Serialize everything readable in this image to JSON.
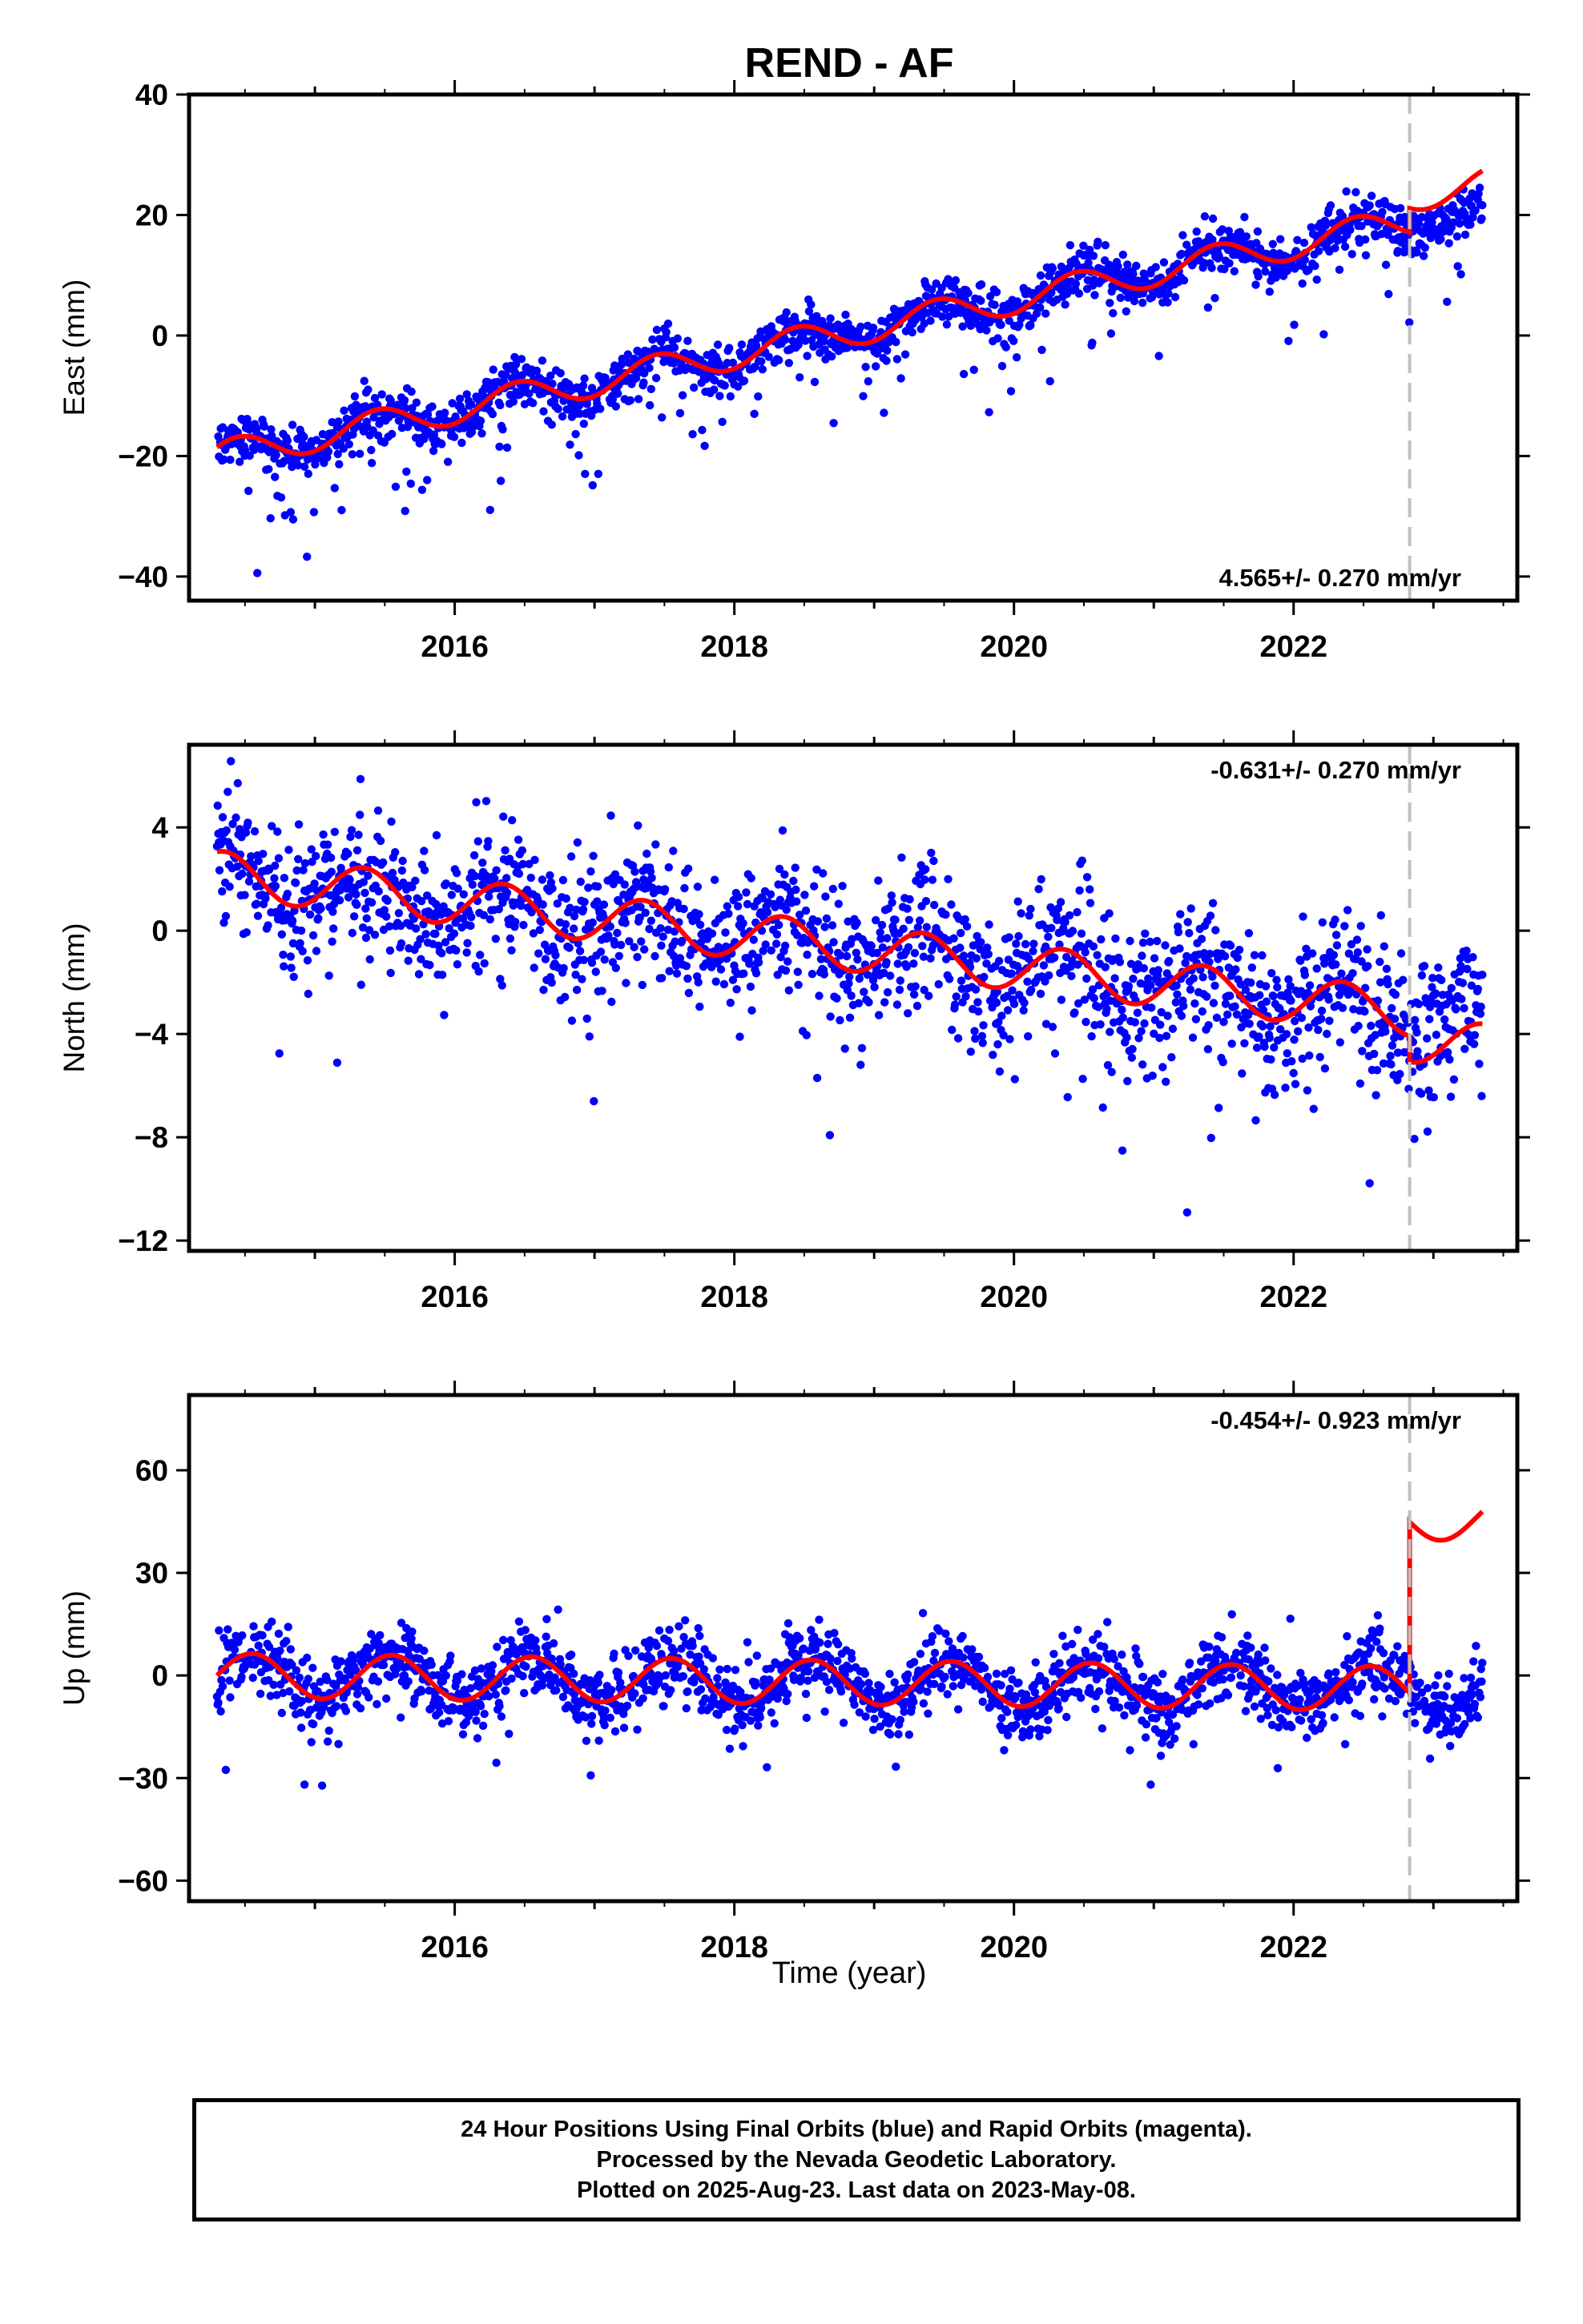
{
  "title": "REND - AF",
  "xlabel": "Time (year)",
  "colors": {
    "points": "#0000ff",
    "model": "#ff0000",
    "offset_line": "#c0c0c0",
    "axes": "#000000"
  },
  "footer": {
    "line1": "24 Hour Positions Using Final Orbits (blue) and Rapid Orbits (magenta).",
    "line2": "Processed by the Nevada Geodetic Laboratory.",
    "line3": "Plotted on 2025-Aug-23. Last data on 2023-May-08."
  },
  "chart_data": [
    {
      "type": "scatter",
      "ylabel": "East (mm)",
      "rate_label": "4.565+/- 0.270 mm/yr",
      "rate_position": "bottom-right",
      "xlim": [
        2014.1,
        2023.6
      ],
      "ylim": [
        -44,
        40
      ],
      "yticks": [
        -40,
        -20,
        0,
        20,
        40
      ],
      "ytick_labels": [
        "−40",
        "−20",
        "0",
        "20",
        "40"
      ],
      "xticks": [
        2016,
        2018,
        2020,
        2022
      ],
      "xtick_labels": [
        "2016",
        "2018",
        "2020",
        "2022"
      ],
      "offset_epoch": 2022.83,
      "data_range": [
        2014.3,
        2023.35
      ],
      "series": [
        {
          "role": "positions",
          "color": "blue",
          "trend": {
            "t0": 2014.3,
            "value_at_t0": -20.0,
            "rate_mm_per_yr": 4.565,
            "annual_amplitude": 2.5,
            "annual_peak_phase": 0.45,
            "noise_sd": 2.0,
            "outlier_fraction": 0.06,
            "outlier_bias": -10.0
          }
        },
        {
          "role": "model",
          "color": "red",
          "trend": {
            "t0": 2014.3,
            "value_at_t0": -20.0,
            "rate_mm_per_yr": 4.565,
            "annual_amplitude": 2.5,
            "annual_peak_phase": 0.45,
            "step_at_offset": 4.0
          }
        }
      ]
    },
    {
      "type": "scatter",
      "ylabel": "North (mm)",
      "rate_label": "-0.631+/- 0.270 mm/yr",
      "rate_position": "top-right",
      "xlim": [
        2014.1,
        2023.6
      ],
      "ylim": [
        -12.4,
        7.2
      ],
      "yticks": [
        -12,
        -8,
        -4,
        0,
        4
      ],
      "ytick_labels": [
        "−12",
        "−8",
        "−4",
        "0",
        "4"
      ],
      "xticks": [
        2016,
        2018,
        2020,
        2022
      ],
      "xtick_labels": [
        "2016",
        "2018",
        "2020",
        "2022"
      ],
      "offset_epoch": 2022.83,
      "data_range": [
        2014.3,
        2023.35
      ],
      "series": [
        {
          "role": "positions",
          "color": "blue",
          "trend": {
            "t0": 2014.3,
            "value_at_t0": 2.2,
            "rate_mm_per_yr": -0.631,
            "annual_amplitude": 0.9,
            "annual_peak_phase": 0.35,
            "noise_sd": 1.3,
            "outlier_fraction": 0.05,
            "outlier_bias": -2.5
          }
        },
        {
          "role": "model",
          "color": "red",
          "trend": {
            "t0": 2014.3,
            "value_at_t0": 2.2,
            "rate_mm_per_yr": -0.631,
            "annual_amplitude": 0.9,
            "annual_peak_phase": 0.35,
            "step_at_offset": -1.0
          }
        }
      ]
    },
    {
      "type": "scatter",
      "ylabel": "Up (mm)",
      "rate_label": "-0.454+/- 0.923 mm/yr",
      "rate_position": "top-right",
      "xlim": [
        2014.1,
        2023.6
      ],
      "ylim": [
        -66,
        82
      ],
      "yticks": [
        -60,
        -30,
        0,
        30,
        60
      ],
      "ytick_labels": [
        "−60",
        "−30",
        "0",
        "30",
        "60"
      ],
      "xticks": [
        2016,
        2018,
        2020,
        2022
      ],
      "xtick_labels": [
        "2016",
        "2018",
        "2020",
        "2022"
      ],
      "offset_epoch": 2022.83,
      "data_range": [
        2014.3,
        2023.35
      ],
      "series": [
        {
          "role": "positions",
          "color": "blue",
          "trend": {
            "t0": 2014.3,
            "value_at_t0": 0.0,
            "rate_mm_per_yr": -0.454,
            "annual_amplitude": 6.5,
            "annual_peak_phase": 0.55,
            "noise_sd": 5.0,
            "outlier_fraction": 0.05,
            "outlier_bias": -8.0
          }
        },
        {
          "role": "model",
          "color": "red",
          "trend": {
            "t0": 2014.3,
            "value_at_t0": 0.0,
            "rate_mm_per_yr": -0.454,
            "annual_amplitude": 6.5,
            "annual_peak_phase": 0.55,
            "step_at_offset": 50.0
          }
        }
      ]
    }
  ]
}
